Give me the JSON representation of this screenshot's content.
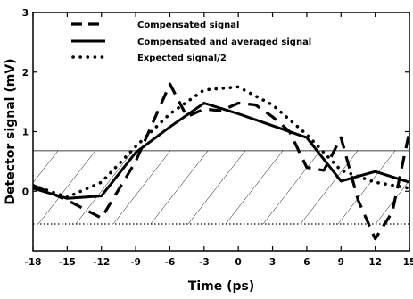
{
  "chart_data": {
    "type": "line",
    "xlabel": "Time (ps)",
    "ylabel": "Detector signal (mV)",
    "xlim": [
      -18,
      15
    ],
    "ylim": [
      -1,
      3
    ],
    "x_ticks": [
      -18,
      -15,
      -12,
      -9,
      -6,
      -3,
      0,
      3,
      6,
      9,
      12,
      15
    ],
    "y_ticks": [
      0,
      1,
      2,
      3
    ],
    "grid": false,
    "legend_position": "top-left",
    "series": [
      {
        "name": "Compensated signal",
        "style": "dashed",
        "x": [
          -18,
          -15,
          -12,
          -9,
          -7.5,
          -6,
          -4.5,
          -3,
          -1.5,
          0,
          1.5,
          3,
          4.5,
          6,
          7.5,
          9,
          10.5,
          12,
          13.5,
          15
        ],
        "y": [
          0.1,
          -0.15,
          -0.45,
          0.5,
          1.15,
          1.8,
          1.25,
          1.38,
          1.35,
          1.48,
          1.45,
          1.25,
          1.0,
          0.4,
          0.35,
          0.9,
          -0.15,
          -0.8,
          -0.35,
          1.0
        ]
      },
      {
        "name": "Compensated and averaged signal",
        "style": "solid",
        "x": [
          -18,
          -15,
          -12,
          -9,
          -6,
          -3,
          0,
          3,
          6,
          9,
          12,
          15
        ],
        "y": [
          0.05,
          -0.12,
          -0.08,
          0.65,
          1.08,
          1.48,
          1.3,
          1.1,
          0.9,
          0.17,
          0.33,
          0.15
        ]
      },
      {
        "name": "Expected signal/2",
        "style": "dotted",
        "x": [
          -18,
          -15,
          -12,
          -9,
          -6,
          -3,
          0,
          3,
          6,
          9,
          12,
          15
        ],
        "y": [
          0.1,
          -0.1,
          0.15,
          0.75,
          1.3,
          1.7,
          1.75,
          1.45,
          0.95,
          0.35,
          0.15,
          0.05
        ]
      }
    ],
    "reference_lines": [
      {
        "y": 0.68,
        "style": "solid-thin"
      },
      {
        "y": -0.55,
        "style": "dotted"
      }
    ],
    "hatched_band": {
      "y_range": [
        -0.55,
        0.68
      ]
    }
  }
}
